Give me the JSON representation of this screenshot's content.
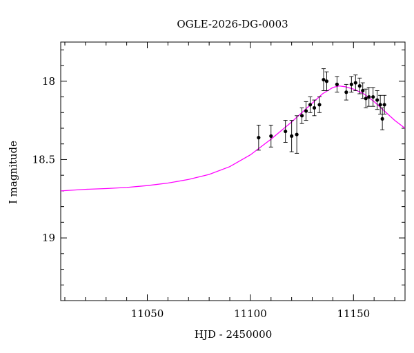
{
  "chart_data": {
    "type": "scatter",
    "title": "OGLE-2026-DG-0003",
    "xlabel": "HJD - 2450000",
    "ylabel": "I magnitude",
    "xlim": [
      11008,
      11175
    ],
    "ylim": [
      19.4,
      17.75
    ],
    "y_inverted": true,
    "x_major_ticks": [
      11050,
      11100,
      11150
    ],
    "x_tick_labels": [
      "11050",
      "11100",
      "11150"
    ],
    "y_major_ticks": [
      18,
      18.5,
      19
    ],
    "y_tick_labels": [
      "18",
      "18.5",
      "19"
    ],
    "x_minor_step": 10,
    "y_minor_step": 0.1,
    "grid": false,
    "colors": {
      "model": "#ff00ff",
      "points": "#000000",
      "frame": "#000000"
    },
    "observations": [
      {
        "x": 11104.0,
        "y": 18.36,
        "err": 0.08
      },
      {
        "x": 11110.0,
        "y": 18.35,
        "err": 0.07
      },
      {
        "x": 11117.0,
        "y": 18.32,
        "err": 0.07
      },
      {
        "x": 11120.0,
        "y": 18.35,
        "err": 0.1
      },
      {
        "x": 11122.5,
        "y": 18.34,
        "err": 0.12
      },
      {
        "x": 11125.0,
        "y": 18.22,
        "err": 0.05
      },
      {
        "x": 11127.0,
        "y": 18.19,
        "err": 0.06
      },
      {
        "x": 11129.0,
        "y": 18.15,
        "err": 0.05
      },
      {
        "x": 11131.0,
        "y": 18.17,
        "err": 0.05
      },
      {
        "x": 11133.5,
        "y": 18.15,
        "err": 0.05
      },
      {
        "x": 11135.5,
        "y": 17.99,
        "err": 0.07
      },
      {
        "x": 11137.0,
        "y": 18.0,
        "err": 0.06
      },
      {
        "x": 11142.0,
        "y": 18.02,
        "err": 0.05
      },
      {
        "x": 11146.5,
        "y": 18.07,
        "err": 0.05
      },
      {
        "x": 11149.0,
        "y": 18.02,
        "err": 0.05
      },
      {
        "x": 11151.0,
        "y": 18.01,
        "err": 0.05
      },
      {
        "x": 11153.0,
        "y": 18.03,
        "err": 0.05
      },
      {
        "x": 11154.5,
        "y": 18.06,
        "err": 0.05
      },
      {
        "x": 11156.0,
        "y": 18.11,
        "err": 0.06
      },
      {
        "x": 11157.5,
        "y": 18.1,
        "err": 0.06
      },
      {
        "x": 11159.5,
        "y": 18.1,
        "err": 0.06
      },
      {
        "x": 11161.5,
        "y": 18.12,
        "err": 0.06
      },
      {
        "x": 11163.0,
        "y": 18.15,
        "err": 0.06
      },
      {
        "x": 11164.0,
        "y": 18.24,
        "err": 0.07
      },
      {
        "x": 11165.0,
        "y": 18.15,
        "err": 0.06
      }
    ],
    "model": {
      "x": [
        11008,
        11020,
        11030,
        11040,
        11050,
        11060,
        11070,
        11080,
        11090,
        11100,
        11110,
        11120,
        11130,
        11135,
        11140,
        11143,
        11146,
        11150,
        11155,
        11160,
        11165,
        11170,
        11175
      ],
      "y": [
        18.7,
        18.69,
        18.685,
        18.678,
        18.666,
        18.65,
        18.627,
        18.595,
        18.545,
        18.47,
        18.37,
        18.26,
        18.14,
        18.08,
        18.04,
        18.03,
        18.035,
        18.05,
        18.08,
        18.13,
        18.19,
        18.25,
        18.3
      ]
    }
  }
}
